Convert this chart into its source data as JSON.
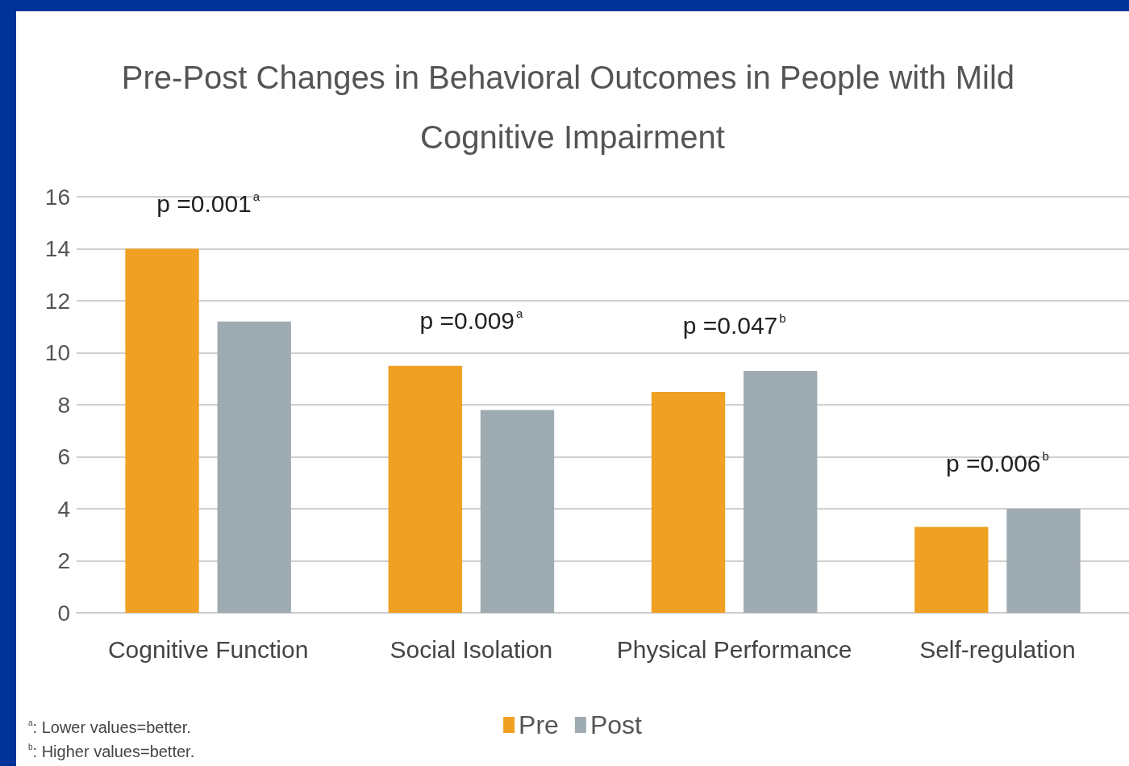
{
  "chart_data": {
    "type": "bar",
    "title": "Pre-Post Changes in Behavioral Outcomes in People with Mild Cognitive Impairment",
    "categories": [
      "Cognitive Function",
      "Social Isolation",
      "Physical Performance",
      "Self-regulation"
    ],
    "series": [
      {
        "name": "Pre",
        "color": "#f0a022",
        "values": [
          14.0,
          9.5,
          8.5,
          3.3
        ]
      },
      {
        "name": "Post",
        "color": "#9eabb1",
        "values": [
          11.2,
          7.8,
          9.3,
          4.0
        ]
      }
    ],
    "ylim": [
      0,
      16
    ],
    "yticks": [
      0,
      2,
      4,
      6,
      8,
      10,
      12,
      14,
      16
    ],
    "grid": "y",
    "legend": "bottom",
    "annotations": [
      "p =0.001$^{a}$",
      "p =0.009$^{a}$",
      "p =0.047$^{b}$",
      "p =0.006$^{b}$",
      "$^{a}$: Lower values=better.",
      "$^{b}$: Higher values=better."
    ]
  }
}
